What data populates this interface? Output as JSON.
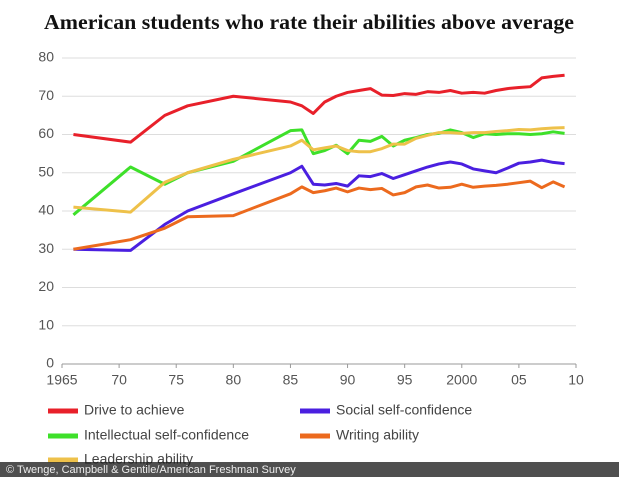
{
  "chart_data": {
    "type": "line",
    "title": "American students who rate their abilities above average",
    "source": "© Twenge, Campbell & Gentile/American Freshman Survey",
    "x": [
      1966,
      1971,
      1974,
      1976,
      1980,
      1985,
      1986,
      1987,
      1988,
      1989,
      1990,
      1991,
      1992,
      1993,
      1994,
      1995,
      1996,
      1997,
      1998,
      1999,
      2000,
      2001,
      2002,
      2003,
      2004,
      2005,
      2006,
      2007,
      2008,
      2009
    ],
    "xlim": [
      1965,
      2010
    ],
    "xticks": [
      1965,
      {
        "value": 1970,
        "label": "70"
      },
      {
        "value": 1975,
        "label": "75"
      },
      {
        "value": 1980,
        "label": "80"
      },
      {
        "value": 1985,
        "label": "85"
      },
      {
        "value": 1990,
        "label": "90"
      },
      {
        "value": 1995,
        "label": "95"
      },
      2000,
      {
        "value": 2005,
        "label": "05"
      },
      {
        "value": 2010,
        "label": "10"
      }
    ],
    "ylim": [
      0,
      80
    ],
    "yticks": [
      0,
      10,
      20,
      30,
      40,
      50,
      60,
      70,
      80
    ],
    "grid": true,
    "series": [
      {
        "name": "Drive to achieve",
        "color": "#e8202a",
        "values": [
          60,
          58,
          65,
          67.5,
          70,
          68.5,
          67.5,
          65.5,
          68.5,
          70,
          71,
          71.5,
          72,
          70.3,
          70.2,
          70.7,
          70.5,
          71.2,
          71,
          71.5,
          70.8,
          71,
          70.8,
          71.5,
          72,
          72.3,
          72.5,
          74.8,
          75.2,
          75.5
        ]
      },
      {
        "name": "Social self-confidence",
        "color": "#4a1fe0",
        "values": [
          30,
          29.7,
          36.5,
          40,
          44.5,
          50,
          51.7,
          47,
          46.8,
          47.2,
          46.5,
          49.2,
          49,
          49.8,
          48.5,
          49.5,
          50.5,
          51.5,
          52.3,
          52.8,
          52.3,
          51,
          50.5,
          50,
          51.2,
          52.5,
          52.8,
          53.3,
          52.7,
          52.4
        ]
      },
      {
        "name": "Intellectual self-confidence",
        "color": "#3ee02a",
        "values": [
          39,
          51.5,
          47,
          50,
          53,
          61,
          61.2,
          55,
          55.8,
          57.2,
          55,
          58.5,
          58.2,
          59.5,
          57,
          58.5,
          59.2,
          60,
          60.3,
          61.2,
          60.5,
          59.2,
          60.2,
          60,
          60.2,
          60.2,
          60,
          60.2,
          60.7,
          60.3
        ]
      },
      {
        "name": "Writing ability",
        "color": "#ec6a1e",
        "values": [
          30,
          32.5,
          35.5,
          38.5,
          38.8,
          44.5,
          46.3,
          44.8,
          45.3,
          46,
          45,
          46,
          45.6,
          45.9,
          44.2,
          44.8,
          46.3,
          46.8,
          46,
          46.2,
          47,
          46.2,
          46.5,
          46.7,
          47,
          47.4,
          47.8,
          46.1,
          47.6,
          46.3
        ]
      },
      {
        "name": "Leadership ability",
        "color": "#eec14a",
        "values": [
          41,
          39.7,
          47.5,
          50,
          53.5,
          57,
          58.5,
          56,
          56.5,
          57,
          55.8,
          55.5,
          55.5,
          56.3,
          57.5,
          57.5,
          59,
          59.8,
          60.5,
          60.5,
          60.3,
          60.5,
          60.5,
          60.8,
          61,
          61.3,
          61.2,
          61.5,
          61.7,
          61.8
        ]
      }
    ]
  }
}
